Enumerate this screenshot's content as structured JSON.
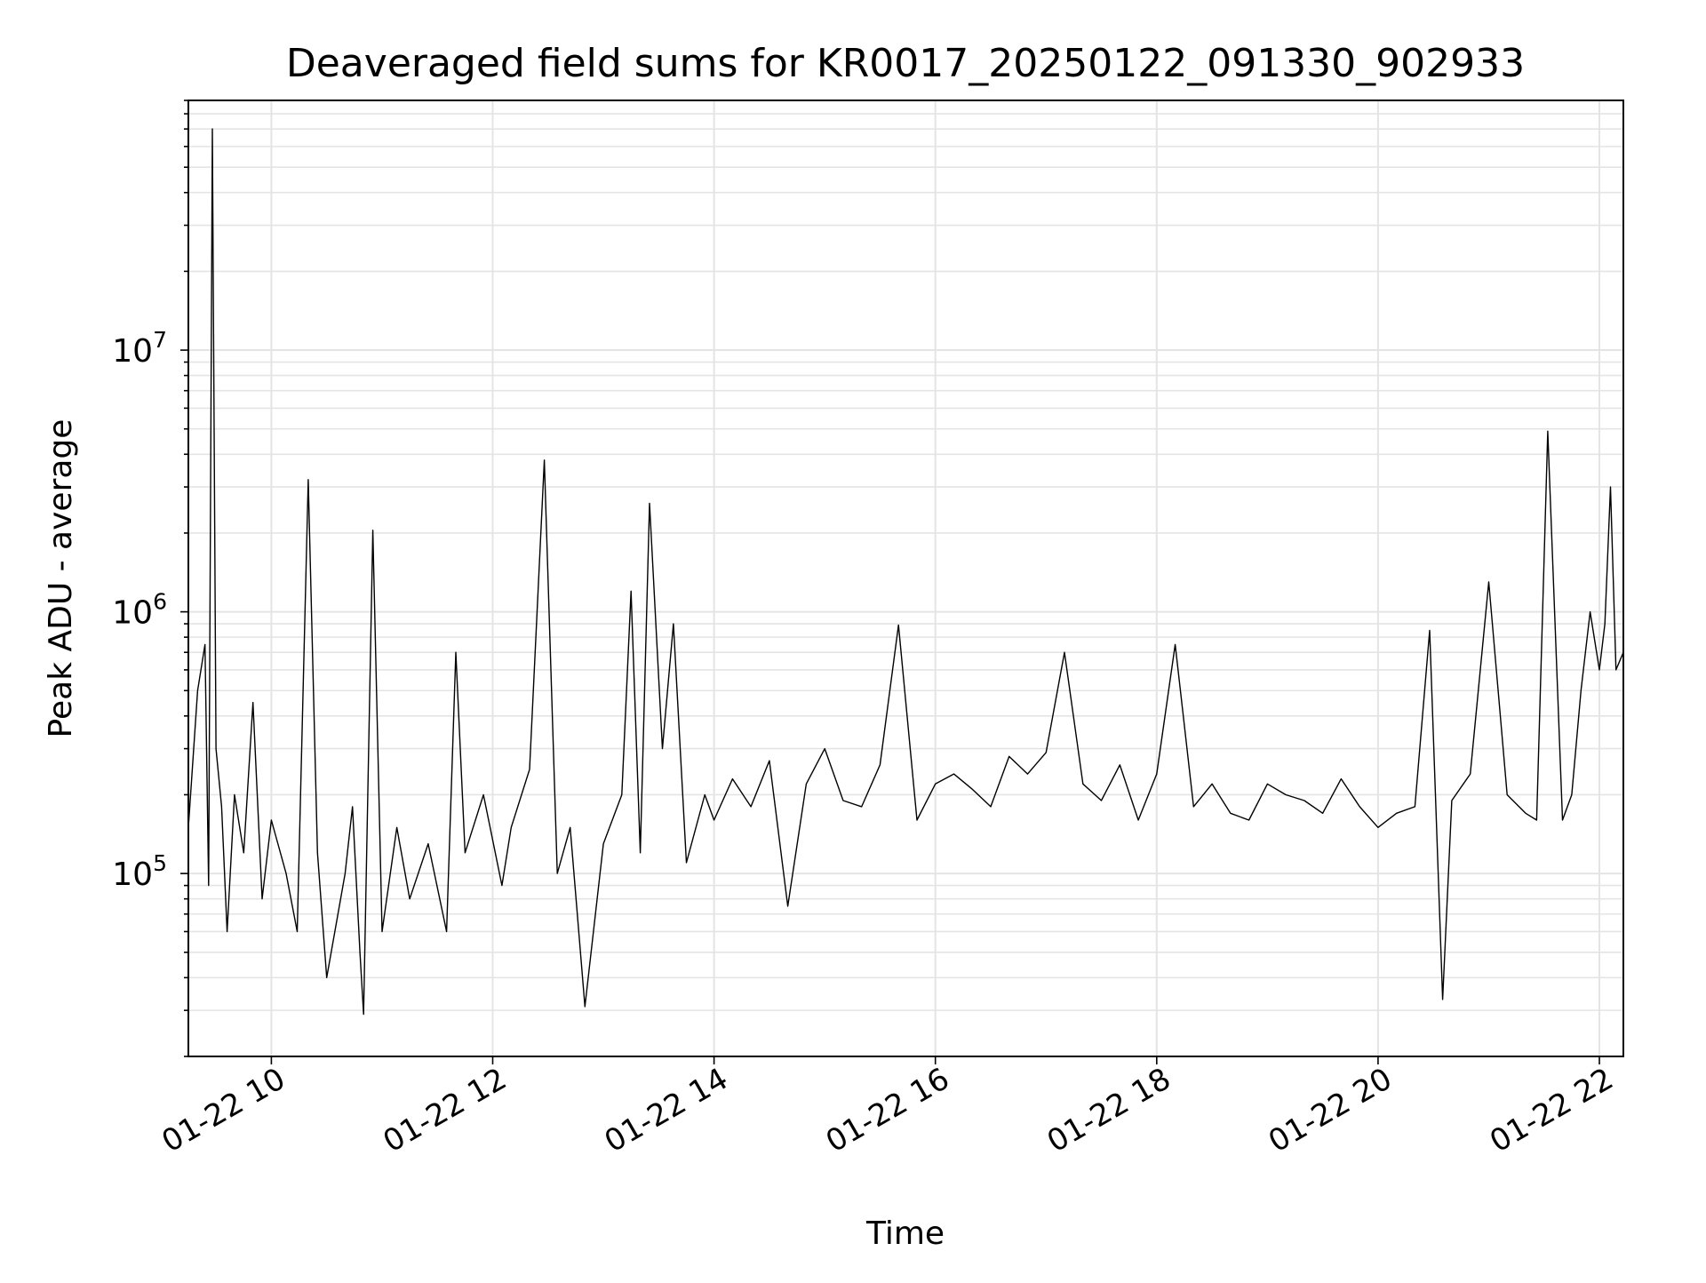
{
  "chart_data": {
    "type": "line",
    "title": "Deaveraged field sums for KR0017_20250122_091330_902933",
    "xlabel": "Time",
    "ylabel": "Peak ADU - average",
    "xscale": "time",
    "yscale": "log",
    "xlim": [
      "2025-01-22 09:15",
      "2025-01-22 22:13"
    ],
    "ylim": [
      20000,
      90000000
    ],
    "x_ticks": [
      {
        "value": "2025-01-22 10:00",
        "label": "01-22 10"
      },
      {
        "value": "2025-01-22 12:00",
        "label": "01-22 12"
      },
      {
        "value": "2025-01-22 14:00",
        "label": "01-22 14"
      },
      {
        "value": "2025-01-22 16:00",
        "label": "01-22 16"
      },
      {
        "value": "2025-01-22 18:00",
        "label": "01-22 18"
      },
      {
        "value": "2025-01-22 20:00",
        "label": "01-22 20"
      },
      {
        "value": "2025-01-22 22:00",
        "label": "01-22 22"
      }
    ],
    "y_ticks": [
      {
        "value": 100000,
        "base": "10",
        "exp": "5"
      },
      {
        "value": 1000000,
        "base": "10",
        "exp": "6"
      },
      {
        "value": 10000000,
        "base": "10",
        "exp": "7"
      }
    ],
    "grid": true,
    "line_color": "#000000",
    "series": [
      {
        "x": [
          "2025-01-22 09:15",
          "2025-01-22 09:20",
          "2025-01-22 09:24",
          "2025-01-22 09:26",
          "2025-01-22 09:28",
          "2025-01-22 09:30",
          "2025-01-22 09:33",
          "2025-01-22 09:36",
          "2025-01-22 09:40",
          "2025-01-22 09:45",
          "2025-01-22 09:50",
          "2025-01-22 09:55",
          "2025-01-22 10:00",
          "2025-01-22 10:08",
          "2025-01-22 10:14",
          "2025-01-22 10:20",
          "2025-01-22 10:25",
          "2025-01-22 10:30",
          "2025-01-22 10:40",
          "2025-01-22 10:44",
          "2025-01-22 10:48",
          "2025-01-22 10:50",
          "2025-01-22 10:55",
          "2025-01-22 11:00",
          "2025-01-22 11:08",
          "2025-01-22 11:15",
          "2025-01-22 11:25",
          "2025-01-22 11:35",
          "2025-01-22 11:40",
          "2025-01-22 11:45",
          "2025-01-22 11:55",
          "2025-01-22 12:05",
          "2025-01-22 12:10",
          "2025-01-22 12:20",
          "2025-01-22 12:28",
          "2025-01-22 12:35",
          "2025-01-22 12:42",
          "2025-01-22 12:50",
          "2025-01-22 13:00",
          "2025-01-22 13:10",
          "2025-01-22 13:15",
          "2025-01-22 13:20",
          "2025-01-22 13:25",
          "2025-01-22 13:32",
          "2025-01-22 13:38",
          "2025-01-22 13:45",
          "2025-01-22 13:55",
          "2025-01-22 14:00",
          "2025-01-22 14:10",
          "2025-01-22 14:20",
          "2025-01-22 14:30",
          "2025-01-22 14:40",
          "2025-01-22 14:50",
          "2025-01-22 15:00",
          "2025-01-22 15:10",
          "2025-01-22 15:20",
          "2025-01-22 15:30",
          "2025-01-22 15:40",
          "2025-01-22 15:50",
          "2025-01-22 16:00",
          "2025-01-22 16:10",
          "2025-01-22 16:20",
          "2025-01-22 16:30",
          "2025-01-22 16:40",
          "2025-01-22 16:50",
          "2025-01-22 17:00",
          "2025-01-22 17:10",
          "2025-01-22 17:20",
          "2025-01-22 17:30",
          "2025-01-22 17:40",
          "2025-01-22 17:50",
          "2025-01-22 18:00",
          "2025-01-22 18:10",
          "2025-01-22 18:20",
          "2025-01-22 18:30",
          "2025-01-22 18:40",
          "2025-01-22 18:50",
          "2025-01-22 19:00",
          "2025-01-22 19:10",
          "2025-01-22 19:20",
          "2025-01-22 19:30",
          "2025-01-22 19:40",
          "2025-01-22 19:50",
          "2025-01-22 20:00",
          "2025-01-22 20:10",
          "2025-01-22 20:20",
          "2025-01-22 20:28",
          "2025-01-22 20:35",
          "2025-01-22 20:40",
          "2025-01-22 20:50",
          "2025-01-22 21:00",
          "2025-01-22 21:10",
          "2025-01-22 21:20",
          "2025-01-22 21:26",
          "2025-01-22 21:32",
          "2025-01-22 21:40",
          "2025-01-22 21:45",
          "2025-01-22 21:50",
          "2025-01-22 21:55",
          "2025-01-22 22:00",
          "2025-01-22 22:03",
          "2025-01-22 22:06",
          "2025-01-22 22:09",
          "2025-01-22 22:13"
        ],
        "y": [
          150000,
          500000,
          750000,
          90000,
          70000000,
          300000,
          180000,
          60000,
          200000,
          120000,
          450000,
          80000,
          160000,
          100000,
          60000,
          3200000,
          120000,
          40000,
          100000,
          180000,
          50000,
          29000,
          2050000,
          60000,
          150000,
          80000,
          130000,
          60000,
          700000,
          120000,
          200000,
          90000,
          150000,
          250000,
          3800000,
          100000,
          150000,
          31000,
          130000,
          200000,
          1200000,
          120000,
          2600000,
          300000,
          900000,
          110000,
          200000,
          160000,
          230000,
          180000,
          270000,
          75000,
          220000,
          300000,
          190000,
          180000,
          260000,
          890000,
          160000,
          220000,
          240000,
          210000,
          180000,
          280000,
          240000,
          290000,
          700000,
          220000,
          190000,
          260000,
          160000,
          240000,
          750000,
          180000,
          220000,
          170000,
          160000,
          220000,
          200000,
          190000,
          170000,
          230000,
          180000,
          150000,
          170000,
          180000,
          850000,
          33000,
          190000,
          240000,
          1300000,
          200000,
          170000,
          160000,
          4900000,
          160000,
          200000,
          500000,
          1000000,
          600000,
          900000,
          3000000,
          600000,
          700000
        ]
      }
    ]
  }
}
